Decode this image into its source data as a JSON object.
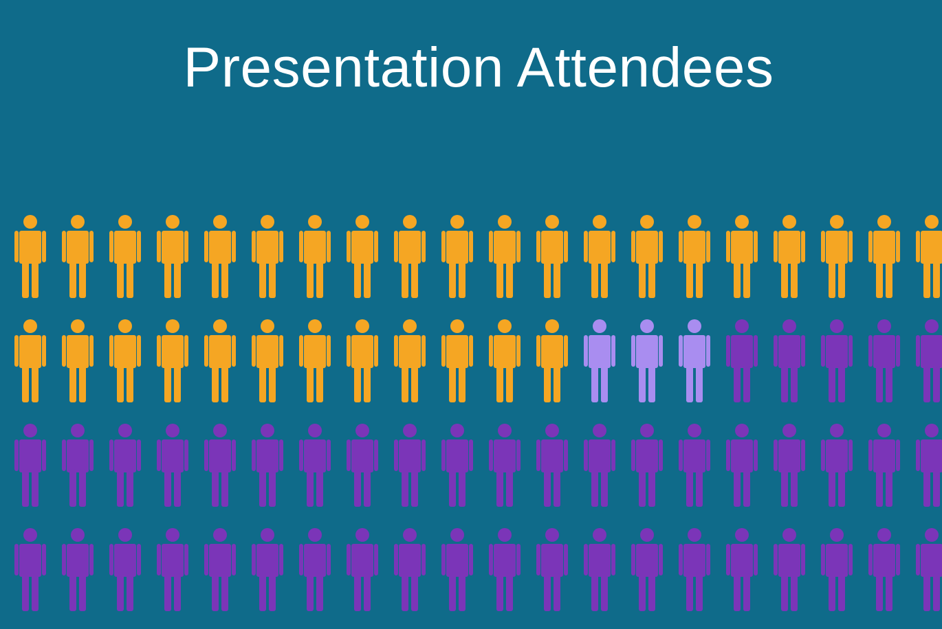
{
  "title": "Presentation Attendees",
  "chart_data": {
    "type": "pictogram",
    "title": "Presentation Attendees",
    "columns": 20,
    "rows": 4,
    "total_icons": 80,
    "series": [
      {
        "count": 32,
        "color": "#f5a623"
      },
      {
        "count": 3,
        "color": "#a98df0"
      },
      {
        "count": 45,
        "color": "#7b35b8"
      }
    ],
    "icon": "person-icon"
  },
  "colors": {
    "background": "#0f6b8a",
    "title": "#ffffff"
  }
}
